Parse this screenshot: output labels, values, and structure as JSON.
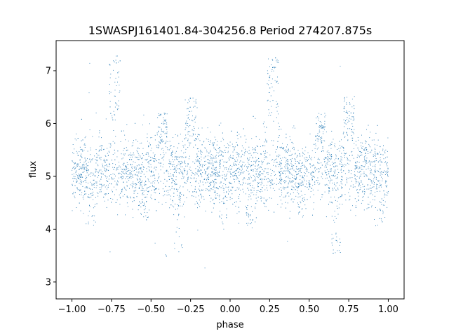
{
  "chart_data": {
    "type": "scatter",
    "title": "1SWASPJ161401.84-304256.8 Period 274207.875s",
    "xlabel": "phase",
    "ylabel": "flux",
    "xlim": [
      -1.1,
      1.1
    ],
    "ylim": [
      2.68,
      7.57
    ],
    "x_ticks": [
      -1.0,
      -0.75,
      -0.5,
      -0.25,
      0.0,
      0.25,
      0.5,
      0.75,
      1.0
    ],
    "x_tick_labels": [
      "−1.00",
      "−0.75",
      "−0.50",
      "−0.25",
      "0.00",
      "0.25",
      "0.50",
      "0.75",
      "1.00"
    ],
    "y_ticks": [
      3,
      4,
      5,
      6,
      7
    ],
    "y_tick_labels": [
      "3",
      "4",
      "5",
      "6",
      "7"
    ],
    "grid": false,
    "legend": "none",
    "point_color": "#1f77b4",
    "series": [
      {
        "description_of_shape": "phase-folded light curve, repeated for phase -1..1",
        "baseline_flux": 5.1,
        "features": [
          {
            "phase": -0.73,
            "kind": "brightening",
            "flux_peak": 7.3
          },
          {
            "phase": 0.27,
            "kind": "brightening",
            "flux_peak": 7.3
          },
          {
            "phase": -0.43,
            "kind": "brightening",
            "flux_peak": 6.2
          },
          {
            "phase": 0.57,
            "kind": "brightening",
            "flux_peak": 6.2
          },
          {
            "phase": -0.25,
            "kind": "brightening",
            "flux_peak": 6.5
          },
          {
            "phase": 0.75,
            "kind": "brightening",
            "flux_peak": 6.5
          },
          {
            "phase": -0.33,
            "kind": "dip",
            "flux_min": 3.5
          },
          {
            "phase": 0.67,
            "kind": "dip",
            "flux_min": 3.5
          },
          {
            "phase": -0.87,
            "kind": "dip",
            "flux_min": 4.0
          },
          {
            "phase": 0.13,
            "kind": "dip",
            "flux_min": 4.0
          },
          {
            "phase": -0.05,
            "kind": "dip",
            "flux_min": 4.0
          },
          {
            "phase": 0.95,
            "kind": "dip",
            "flux_min": 4.0
          },
          {
            "phase": -0.55,
            "kind": "dip",
            "flux_min": 4.2
          },
          {
            "phase": 0.45,
            "kind": "dip",
            "flux_min": 4.2
          }
        ]
      }
    ]
  }
}
